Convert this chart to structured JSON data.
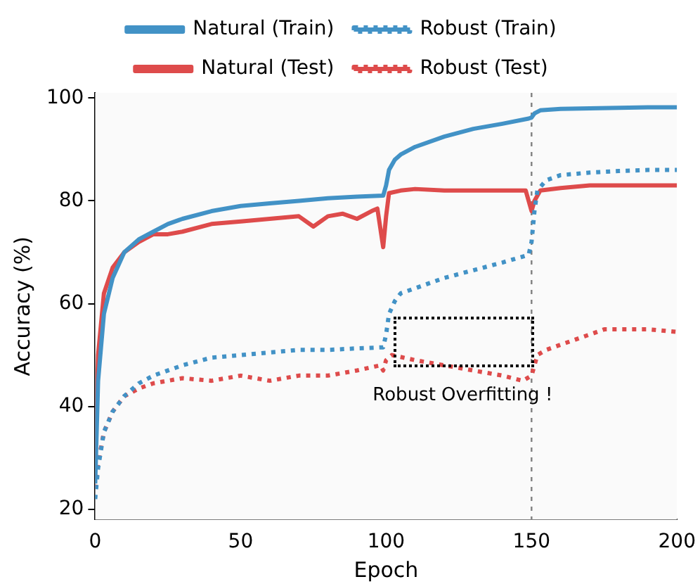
{
  "chart_data": {
    "type": "line",
    "xlabel": "Epoch",
    "ylabel": "Accuracy (%)",
    "xlim": [
      0,
      200
    ],
    "xticks": [
      0,
      50,
      100,
      150,
      200
    ],
    "ylim": [
      18,
      101
    ],
    "yticks": [
      20,
      40,
      60,
      80,
      100
    ],
    "legend": "top",
    "grid": false,
    "series": [
      {
        "name": "Natural (Train)",
        "color": "#4292c6",
        "line_style": "solid",
        "x": [
          0,
          1,
          3,
          6,
          10,
          15,
          20,
          25,
          30,
          40,
          50,
          60,
          70,
          80,
          90,
          99,
          100,
          101,
          103,
          105,
          110,
          120,
          130,
          140,
          149,
          150,
          151,
          153,
          160,
          170,
          180,
          190,
          200
        ],
        "values": [
          25,
          45,
          58,
          65,
          70,
          72.5,
          74,
          75.5,
          76.5,
          78,
          79,
          79.5,
          80,
          80.5,
          80.8,
          81,
          83,
          86,
          88,
          89,
          90.5,
          92.5,
          94,
          95,
          96,
          96.2,
          97,
          97.6,
          97.9,
          98,
          98.1,
          98.2,
          98.2
        ]
      },
      {
        "name": "Robust (Train)",
        "color": "#4292c6",
        "line_style": "dotted",
        "x": [
          0,
          1,
          3,
          6,
          10,
          15,
          20,
          30,
          40,
          50,
          60,
          70,
          80,
          90,
          99,
          100,
          101,
          103,
          105,
          110,
          120,
          130,
          140,
          149,
          150,
          151,
          152,
          155,
          160,
          170,
          180,
          190,
          200
        ],
        "values": [
          22,
          28,
          35,
          39,
          42,
          44.5,
          46,
          48,
          49.5,
          50,
          50.5,
          51,
          51,
          51.3,
          51.5,
          54,
          58,
          60.5,
          62,
          63,
          65,
          66.5,
          68,
          69.5,
          72,
          78,
          82,
          84,
          85,
          85.5,
          85.8,
          86,
          86
        ]
      },
      {
        "name": "Natural (Test)",
        "color": "#de4b4b",
        "line_style": "solid",
        "x": [
          0,
          1,
          3,
          6,
          10,
          15,
          20,
          25,
          30,
          40,
          50,
          60,
          70,
          75,
          80,
          85,
          90,
          95,
          97,
          99,
          100,
          101,
          105,
          110,
          120,
          130,
          140,
          148,
          150,
          151,
          153,
          160,
          170,
          180,
          190,
          200
        ],
        "values": [
          30,
          50,
          62,
          67,
          70,
          72,
          73.5,
          73.5,
          74,
          75.5,
          76,
          76.5,
          77,
          75,
          77,
          77.5,
          76.5,
          78,
          78.5,
          71,
          77,
          81.5,
          82,
          82.3,
          82,
          82,
          82,
          82,
          78,
          80,
          82,
          82.5,
          83,
          83,
          83,
          83
        ]
      },
      {
        "name": "Robust (Test)",
        "color": "#de4b4b",
        "line_style": "dotted",
        "x": [
          0,
          1,
          3,
          6,
          10,
          15,
          20,
          30,
          40,
          50,
          60,
          70,
          80,
          90,
          98,
          99,
          100,
          102,
          110,
          120,
          130,
          140,
          147,
          150,
          152,
          155,
          160,
          170,
          175,
          180,
          190,
          200
        ],
        "values": [
          24,
          29,
          35,
          39,
          42,
          43.5,
          44.5,
          45.5,
          45,
          46,
          45,
          46,
          46,
          47,
          48,
          47,
          49,
          50,
          49,
          48,
          47,
          46,
          45,
          46,
          50,
          51,
          52,
          54,
          55,
          55,
          55,
          54.5
        ]
      }
    ],
    "ref_lines": [
      {
        "axis": "x",
        "value": 150,
        "color": "#808080",
        "line_style": "dotted"
      }
    ],
    "annotations": [
      "Robust Overfitting !"
    ]
  }
}
